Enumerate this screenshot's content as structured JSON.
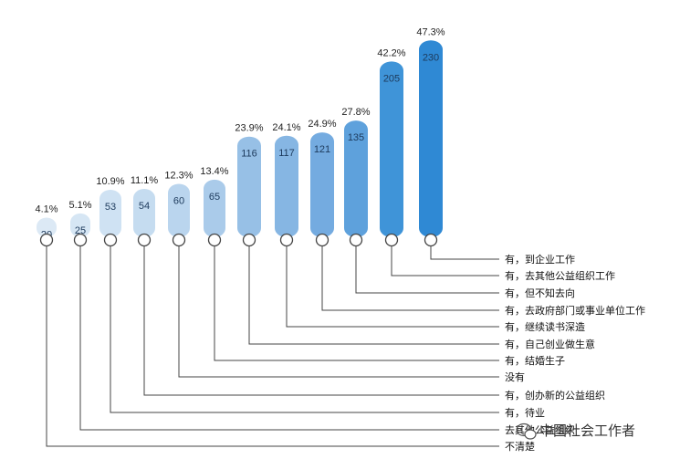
{
  "chart_data": {
    "type": "bar",
    "categories": [
      "不清楚",
      "去其他公益组织",
      "有，待业",
      "有，创办新的公益组织",
      "没有",
      "有，结婚生子",
      "有，自己创业做生意",
      "有，继续读书深造",
      "有，去政府部门或事业单位工作",
      "有，但不知去向",
      "有，去其他公益组织工作",
      "有，到企业工作"
    ],
    "values": [
      20,
      25,
      53,
      54,
      60,
      65,
      116,
      117,
      121,
      135,
      205,
      230
    ],
    "percent_labels": [
      "4.1%",
      "5.1%",
      "10.9%",
      "11.1%",
      "12.3%",
      "13.4%",
      "23.9%",
      "24.1%",
      "24.9%",
      "27.8%",
      "42.2%",
      "47.3%"
    ],
    "colors": [
      "#dce9f5",
      "#d6e6f4",
      "#cfe2f3",
      "#c5dcf0",
      "#bad5ee",
      "#aacbea",
      "#97c0e6",
      "#86b6e3",
      "#74abe0",
      "#5ea1dc",
      "#3f94d8",
      "#2f89d4"
    ],
    "ylim": [
      0,
      240
    ],
    "title": "",
    "xlabel": "",
    "ylabel": ""
  },
  "watermark": {
    "text": "中国社会工作者",
    "icon": "wechat-icon"
  }
}
